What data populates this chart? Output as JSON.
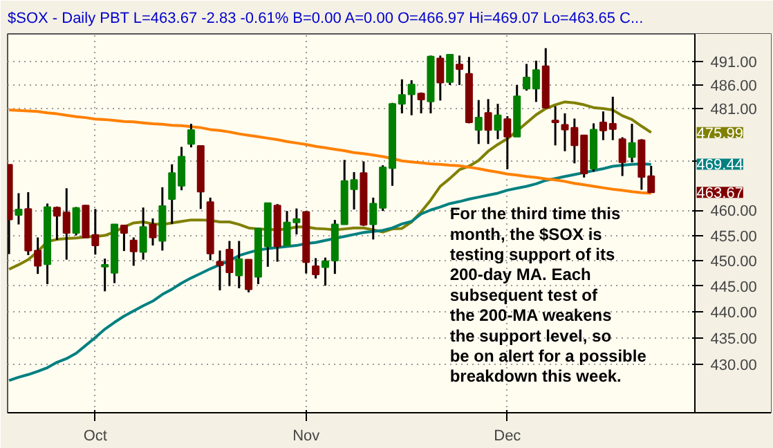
{
  "chart_data": {
    "type": "candlestick",
    "title": "$SOX - Daily  PBT  L=463.67  -2.83  -0.61%  B=0.00  A=0.00  O=466.97  Hi=469.07  Lo=463.65  C...",
    "categories": [
      null,
      null,
      null,
      null,
      null,
      null,
      null,
      null,
      null,
      "Oct",
      null,
      null,
      null,
      null,
      null,
      null,
      null,
      null,
      null,
      null,
      null,
      null,
      null,
      null,
      null,
      null,
      null,
      null,
      null,
      null,
      null,
      "Nov",
      null,
      null,
      null,
      null,
      null,
      null,
      null,
      null,
      null,
      null,
      null,
      null,
      null,
      null,
      null,
      null,
      null,
      null,
      null,
      null,
      "Dec",
      null,
      null,
      null,
      null,
      null,
      null,
      null,
      null,
      null,
      null,
      null,
      null,
      null,
      null,
      null
    ],
    "ohlc": [
      [
        469.3,
        469.3,
        451.3,
        458.2
      ],
      [
        459.1,
        463.5,
        457.2,
        460.2
      ],
      [
        460.3,
        463.7,
        451.1,
        452.0
      ],
      [
        452.0,
        454.6,
        447.4,
        449.0
      ],
      [
        449.3,
        461.4,
        445.4,
        460.7
      ],
      [
        460.6,
        460.8,
        454.1,
        458.9
      ],
      [
        459.6,
        464.5,
        450.2,
        455.5
      ],
      [
        455.5,
        460.7,
        455.0,
        460.5
      ],
      [
        461.0,
        461.1,
        454.5,
        454.6
      ],
      [
        455.1,
        460.3,
        451.2,
        453.0
      ],
      [
        448.8,
        450.4,
        444.0,
        449.2
      ],
      [
        447.6,
        457.2,
        445.6,
        457.2
      ],
      [
        457.0,
        457.1,
        451.9,
        455.5
      ],
      [
        454.0,
        454.6,
        449.0,
        451.8
      ],
      [
        451.7,
        460.6,
        450.2,
        456.7
      ],
      [
        457.2,
        458.4,
        453.0,
        454.6
      ],
      [
        453.9,
        464.7,
        452.0,
        460.9
      ],
      [
        462.3,
        469.4,
        457.3,
        467.6
      ],
      [
        465.0,
        473.0,
        464.1,
        471.0
      ],
      [
        473.6,
        477.8,
        472.9,
        476.5
      ],
      [
        473.2,
        473.2,
        460.3,
        463.8
      ],
      [
        461.7,
        462.6,
        450.1,
        451.4
      ],
      [
        449.8,
        452.0,
        444.2,
        449.1
      ],
      [
        452.2,
        453.9,
        445.0,
        447.7
      ],
      [
        447.1,
        453.9,
        444.6,
        450.3
      ],
      [
        450.2,
        450.2,
        443.8,
        444.4
      ],
      [
        446.8,
        456.5,
        445.4,
        456.4
      ],
      [
        452.8,
        461.5,
        448.8,
        461.5
      ],
      [
        461.0,
        461.3,
        449.8,
        452.8
      ],
      [
        453.0,
        459.9,
        453.0,
        457.6
      ],
      [
        457.6,
        460.4,
        455.2,
        458.3
      ],
      [
        459.7,
        459.9,
        447.5,
        449.7
      ],
      [
        448.9,
        450.5,
        446.5,
        447.3
      ],
      [
        448.7,
        450.6,
        445.1,
        449.9
      ],
      [
        450.0,
        458.1,
        447.4,
        457.2
      ],
      [
        457.2,
        470.3,
        457.2,
        466.0
      ],
      [
        464.3,
        467.8,
        460.2,
        466.2
      ],
      [
        467.6,
        470.0,
        456.9,
        457.1
      ],
      [
        457.2,
        462.6,
        454.2,
        461.4
      ],
      [
        460.5,
        469.2,
        459.9,
        468.8
      ],
      [
        468.6,
        482.2,
        465.0,
        482.0
      ],
      [
        482.0,
        487.2,
        480.0,
        483.9
      ],
      [
        484.0,
        487.0,
        479.6,
        486.1
      ],
      [
        484.2,
        484.4,
        480.0,
        482.9
      ],
      [
        482.5,
        492.3,
        480.0,
        492.1
      ],
      [
        491.7,
        492.3,
        482.7,
        486.5
      ],
      [
        486.6,
        492.5,
        486.0,
        492.5
      ],
      [
        490.4,
        492.3,
        486.0,
        489.4
      ],
      [
        488.4,
        492.0,
        477.9,
        478.1
      ],
      [
        476.5,
        482.8,
        473.6,
        479.1
      ],
      [
        480.1,
        483.0,
        473.6,
        476.5
      ],
      [
        476.5,
        482.0,
        474.6,
        479.6
      ],
      [
        478.8,
        479.4,
        468.4,
        475.1
      ],
      [
        475.1,
        486.0,
        475.1,
        483.6
      ],
      [
        485.2,
        490.5,
        484.8,
        487.6
      ],
      [
        485.2,
        491.2,
        482.4,
        489.2
      ],
      [
        490.0,
        493.9,
        481.0,
        481.2
      ],
      [
        478.5,
        481.5,
        473.3,
        478.1
      ],
      [
        477.6,
        480.0,
        472.1,
        476.6
      ],
      [
        477.0,
        478.9,
        469.6,
        473.3
      ],
      [
        475.4,
        475.5,
        466.7,
        467.5
      ],
      [
        468.5,
        477.9,
        467.9,
        476.6
      ],
      [
        478.1,
        480.4,
        474.4,
        476.4
      ],
      [
        477.8,
        483.5,
        474.4,
        476.7
      ],
      [
        474.6,
        475.0,
        467.0,
        469.8
      ],
      [
        470.9,
        477.8,
        469.8,
        473.8
      ],
      [
        474.4,
        474.6,
        464.2,
        466.8
      ],
      [
        466.97,
        469.07,
        463.65,
        463.67
      ]
    ],
    "colors": [
      "#800000",
      "#008000",
      "#800000",
      "#800000",
      "#008000",
      "#800000",
      "#800000",
      "#008000",
      "#800000",
      "#800000",
      "#008000",
      "#008000",
      "#800000",
      "#800000",
      "#008000",
      "#800000",
      "#008000",
      "#008000",
      "#008000",
      "#008000",
      "#800000",
      "#800000",
      "#800000",
      "#800000",
      "#008000",
      "#800000",
      "#008000",
      "#008000",
      "#800000",
      "#008000",
      "#008000",
      "#800000",
      "#800000",
      "#008000",
      "#008000",
      "#008000",
      "#008000",
      "#800000",
      "#008000",
      "#008000",
      "#008000",
      "#008000",
      "#008000",
      "#800000",
      "#008000",
      "#800000",
      "#008000",
      "#800000",
      "#800000",
      "#008000",
      "#800000",
      "#008000",
      "#800000",
      "#008000",
      "#008000",
      "#008000",
      "#800000",
      "#800000",
      "#800000",
      "#800000",
      "#800000",
      "#008000",
      "#800000",
      "#800000",
      "#800000",
      "#008000",
      "#800000",
      "#800000"
    ],
    "series": [
      {
        "type": "line",
        "color": "#808000",
        "values": [
          448.3,
          449.2,
          450.2,
          451.8,
          453.8,
          454.2,
          454.4,
          454.5,
          454.7,
          454.8,
          455.0,
          455.7,
          456.7,
          457.5,
          457.7,
          457.3,
          457.2,
          457.5,
          457.8,
          458.1,
          458.1,
          458.0,
          457.7,
          457.7,
          457.2,
          456.5,
          456.3,
          456.2,
          456.1,
          456.3,
          456.7,
          456.7,
          456.4,
          456.3,
          456.1,
          456.3,
          456.5,
          456.5,
          456.1,
          455.7,
          456.3,
          456.4,
          457.7,
          459.7,
          462.1,
          464.9,
          466.5,
          468.3,
          469.0,
          470.2,
          472.1,
          473.5,
          474.7,
          476.3,
          478.0,
          479.7,
          481.0,
          481.8,
          482.4,
          482.2,
          481.8,
          481.2,
          481.0,
          480.7,
          479.5,
          478.7,
          477.3,
          476.0
        ]
      },
      {
        "type": "line",
        "color": "#008080",
        "values": [
          427.0,
          427.6,
          428.1,
          428.7,
          429.4,
          430.4,
          431.1,
          432.1,
          433.6,
          435.1,
          436.7,
          438.0,
          439.2,
          440.2,
          441.2,
          442.1,
          443.4,
          444.4,
          445.6,
          446.6,
          447.5,
          448.4,
          449.2,
          450.0,
          451.0,
          451.6,
          452.1,
          452.4,
          452.6,
          452.8,
          453.0,
          453.4,
          453.6,
          454.0,
          454.4,
          454.8,
          455.2,
          455.6,
          455.8,
          456.0,
          456.5,
          457.3,
          457.8,
          459.3,
          460.1,
          460.7,
          461.4,
          461.8,
          462.3,
          462.7,
          463.1,
          463.5,
          464.1,
          464.5,
          464.9,
          465.4,
          466.1,
          466.5,
          466.9,
          467.3,
          467.7,
          468.1,
          468.5,
          469.0,
          469.2,
          469.4,
          469.5,
          469.4
        ]
      },
      {
        "type": "line",
        "color": "#ff8000",
        "values": [
          480.7,
          480.6,
          480.5,
          480.4,
          480.1,
          479.9,
          479.6,
          479.3,
          479.1,
          478.8,
          478.7,
          478.5,
          478.3,
          478.2,
          478.0,
          477.8,
          477.7,
          477.5,
          477.4,
          477.2,
          477.0,
          476.6,
          476.4,
          476.1,
          475.7,
          475.4,
          475.1,
          474.8,
          474.5,
          474.1,
          473.8,
          473.5,
          473.1,
          472.8,
          472.5,
          472.2,
          471.8,
          471.6,
          471.3,
          471.0,
          470.6,
          470.1,
          469.9,
          469.7,
          469.5,
          469.4,
          469.2,
          469.1,
          468.8,
          468.5,
          468.1,
          467.8,
          467.4,
          467.2,
          466.9,
          466.7,
          466.4,
          466.2,
          465.9,
          465.5,
          465.2,
          464.9,
          464.6,
          464.3,
          464.1,
          463.8,
          463.6,
          463.5
        ]
      }
    ],
    "log": true,
    "ylim": [
      421,
      497
    ],
    "yticks": [
      {
        "value": 430,
        "label": "430.00"
      },
      {
        "value": 435,
        "label": "435.00"
      },
      {
        "value": 440,
        "label": "440.00"
      },
      {
        "value": 445,
        "label": "445.00"
      },
      {
        "value": 450,
        "label": "450.00"
      },
      {
        "value": 455,
        "label": "455.00"
      },
      {
        "value": 460,
        "label": "460.00"
      },
      {
        "value": 470,
        "label": null
      },
      {
        "value": 481,
        "label": "481.00"
      },
      {
        "value": 486,
        "label": "486.00"
      },
      {
        "value": 491,
        "label": "491.00"
      }
    ],
    "grid": true,
    "annotations": [
      "475.99",
      "469.44",
      "463.67",
      "For the third time this\nmonth, the $SOX is\ntesting support of its\n200-day MA.  Each\nsubsequent test of\nthe 200-MA weakens\nthe support level, so\nbe on alert for a possible\nbreakdown this week."
    ]
  }
}
